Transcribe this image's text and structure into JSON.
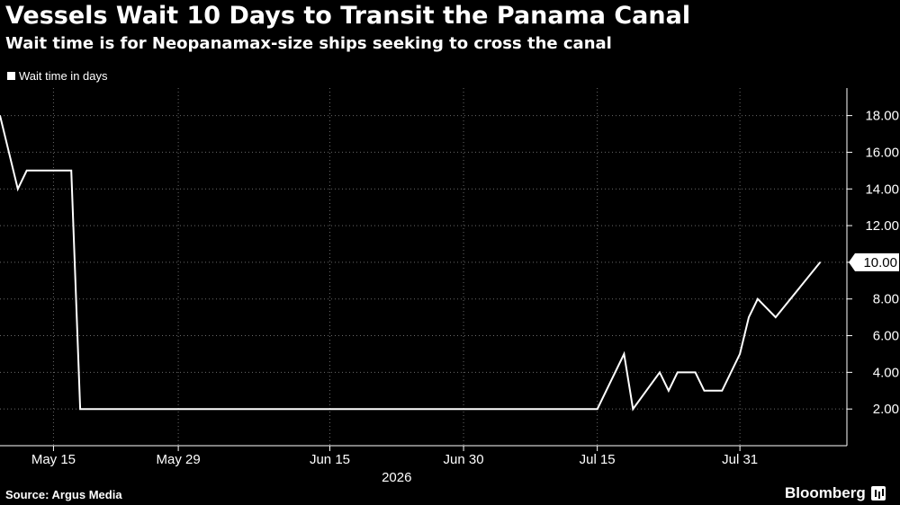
{
  "title": "Vessels Wait 10 Days to Transit the Panama Canal",
  "subtitle": "Wait time is for Neopanamax-size ships seeking to cross the canal",
  "legend_label": "Wait time in days",
  "source": "Source: Argus Media",
  "brand": "Bloomberg",
  "chart_data": {
    "type": "line",
    "title": "Vessels Wait 10 Days to Transit the Panama Canal",
    "subtitle": "Wait time is for Neopanamax-size ships seeking to cross the canal",
    "xlabel": "",
    "ylabel": "",
    "year_label": "2026",
    "x_tick_labels": [
      "May 15",
      "May 29",
      "Jun 15",
      "Jun 30",
      "Jul 15",
      "Jul 31"
    ],
    "x_ticks": [
      "2026-05-15",
      "2026-05-29",
      "2026-06-15",
      "2026-06-30",
      "2026-07-15",
      "2026-07-31"
    ],
    "y_ticks": [
      2.0,
      4.0,
      6.0,
      8.0,
      10.0,
      12.0,
      14.0,
      16.0,
      18.0
    ],
    "y_tick_labels": [
      "2.00",
      "4.00",
      "6.00",
      "8.00",
      "10.00",
      "12.00",
      "14.00",
      "16.00",
      "18.00"
    ],
    "ylim": [
      0,
      19.5
    ],
    "xlim": [
      "2026-05-09",
      "2026-08-12"
    ],
    "last_value_label": "10.00",
    "grid": "vertical dotted at date ticks, horizontal dotted at value ticks",
    "y_axis_position": "right",
    "series": [
      {
        "name": "Wait time in days",
        "color": "#ffffff",
        "points": [
          [
            "2026-05-09",
            18
          ],
          [
            "2026-05-11",
            14
          ],
          [
            "2026-05-12",
            15
          ],
          [
            "2026-05-17",
            15
          ],
          [
            "2026-05-18",
            2
          ],
          [
            "2026-07-15",
            2
          ],
          [
            "2026-07-16",
            3
          ],
          [
            "2026-07-18",
            5
          ],
          [
            "2026-07-19",
            2
          ],
          [
            "2026-07-22",
            4
          ],
          [
            "2026-07-23",
            3
          ],
          [
            "2026-07-24",
            4
          ],
          [
            "2026-07-26",
            4
          ],
          [
            "2026-07-27",
            3
          ],
          [
            "2026-07-29",
            3
          ],
          [
            "2026-07-31",
            5
          ],
          [
            "2026-08-01",
            7
          ],
          [
            "2026-08-02",
            8
          ],
          [
            "2026-08-04",
            7
          ],
          [
            "2026-08-09",
            10
          ]
        ]
      }
    ]
  }
}
